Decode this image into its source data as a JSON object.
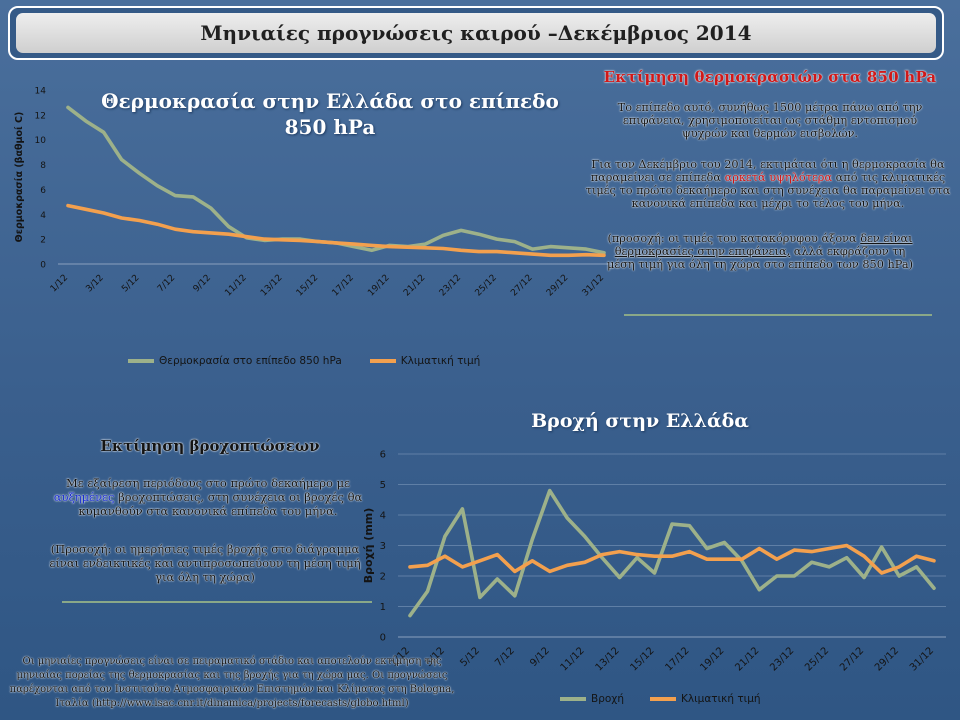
{
  "slide_title": "Μηνιαίες προγνώσεις καιρού –Δεκέμβριος 2014",
  "colors": {
    "series_green": "#9db18a",
    "series_orange": "#f3a04e",
    "accent_red": "#d01818",
    "accent_blue": "#1a2ed0"
  },
  "temp_section": {
    "heading": "Εκτίμηση θερμοκρασιών στα 850 hPa",
    "para1": "Το επίπεδο αυτό, συνήθως 1500 μέτρα πάνω από την επιφάνεια, χρησιμοποιείται ως στάθμη εντοπισμού ψυχρών και θερμών εισβολών.",
    "para2_a": "Για τον Δεκέμβριο του 2014, εκτιμάται ότι η θερμοκρασία θα παραμείνει σε επίπεδα",
    "para2_hl": "αρκετά υψηλότερα",
    "para2_b": "από τις κλιματικές τιμές το πρώτο δεκαήμερο και στη συνέχεια θα παραμείνει στα κανονικά επίπεδα και μέχρι το τέλος του μήνα.",
    "note_a": "(προσοχή: οι τιμές του κατακόρυφου άξονα",
    "note_ul": "δεν είναι θερμοκρασίες στην επιφάνεια,",
    "note_b": "αλλά εκφράζουν τη μέση τιμή για όλη τη χώρα στο επίπεδο των 850 hPa)"
  },
  "rain_section": {
    "heading": "Εκτίμηση βροχοπτώσεων",
    "para_a": "Με εξαίρεση περιόδους στο πρώτο δεκαήμερο με",
    "para_hl": "αυξημένες",
    "para_b": "βροχοπτώσεις, στη συνέχεια οι βροχές θα κυμανθούν στα κανονικά επίπεδα του μήνα.",
    "note": "(Προσοχή: οι ημερήσιες τιμές βροχής στο διάγραμμα είναι ενδεικτικές και αντιπροσωπεύουν τη μέση τιμή για όλη τη χώρα)"
  },
  "footer": "Οι μηνιαίες προγνώσεις είναι σε πειραματικό στάδιο και αποτελούν εκτίμηση της μηνιαίας πορείας της θερμοκρασίας και της βροχής για τη χώρα μας. Οι προγνώσεις παρέχονται από τον Ινστιτούτο Ατμοσφαιρικών Επιστημών και Κλίματος στη Bologna, Ιταλία (http://www.isac.cnr.it/dinamica/projects/forecasts/globo.html)",
  "chart_data": [
    {
      "type": "line",
      "title": "Θερμοκρασία στην Ελλάδα στο επίπεδο 850 hPa",
      "xlabel": "",
      "ylabel": "Θερμοκρασία (βαθμοί C)",
      "ylim": [
        0,
        14
      ],
      "yticks": [
        0,
        2,
        4,
        6,
        8,
        10,
        12,
        14
      ],
      "x": [
        "1/12",
        "2/12",
        "3/12",
        "4/12",
        "5/12",
        "6/12",
        "7/12",
        "8/12",
        "9/12",
        "10/12",
        "11/12",
        "12/12",
        "13/12",
        "14/12",
        "15/12",
        "16/12",
        "17/12",
        "18/12",
        "19/12",
        "20/12",
        "21/12",
        "22/12",
        "23/12",
        "24/12",
        "25/12",
        "26/12",
        "27/12",
        "28/12",
        "29/12",
        "30/12",
        "31/12"
      ],
      "xtick_labels": [
        "1/12",
        "3/12",
        "5/12",
        "7/12",
        "9/12",
        "11/12",
        "13/12",
        "15/12",
        "17/12",
        "19/12",
        "21/12",
        "23/12",
        "25/12",
        "27/12",
        "29/12",
        "31/12"
      ],
      "grid": false,
      "legend": "bottom",
      "series": [
        {
          "name": "Θερμοκρασία στο επίπεδο 850 hPa",
          "color": "#9db18a",
          "values": [
            12.6,
            11.5,
            10.6,
            8.4,
            7.3,
            6.3,
            5.5,
            5.4,
            4.5,
            3.0,
            2.1,
            1.9,
            2.0,
            2.0,
            1.8,
            1.7,
            1.4,
            1.1,
            1.5,
            1.4,
            1.6,
            2.3,
            2.7,
            2.4,
            2.0,
            1.8,
            1.2,
            1.4,
            1.3,
            1.2,
            0.9
          ]
        },
        {
          "name": "Κλιματική τιμή",
          "color": "#f3a04e",
          "values": [
            4.7,
            4.4,
            4.1,
            3.7,
            3.5,
            3.2,
            2.8,
            2.6,
            2.5,
            2.4,
            2.2,
            2.0,
            1.95,
            1.9,
            1.8,
            1.7,
            1.6,
            1.5,
            1.4,
            1.35,
            1.3,
            1.25,
            1.1,
            1.0,
            1.0,
            0.9,
            0.8,
            0.7,
            0.7,
            0.75,
            0.7
          ]
        }
      ]
    },
    {
      "type": "line",
      "title": "Βροχή στην Ελλάδα",
      "xlabel": "",
      "ylabel": "Βροχή (mm)",
      "ylim": [
        0,
        6
      ],
      "yticks": [
        0,
        1,
        2,
        3,
        4,
        5,
        6
      ],
      "x": [
        "1/12",
        "2/12",
        "3/12",
        "4/12",
        "5/12",
        "6/12",
        "7/12",
        "8/12",
        "9/12",
        "10/12",
        "11/12",
        "12/12",
        "13/12",
        "14/12",
        "15/12",
        "16/12",
        "17/12",
        "18/12",
        "19/12",
        "20/12",
        "21/12",
        "22/12",
        "23/12",
        "24/12",
        "25/12",
        "26/12",
        "27/12",
        "28/12",
        "29/12",
        "30/12",
        "31/12"
      ],
      "xtick_labels": [
        "1/12",
        "3/12",
        "5/12",
        "7/12",
        "9/12",
        "11/12",
        "13/12",
        "15/12",
        "17/12",
        "19/12",
        "21/12",
        "23/12",
        "25/12",
        "27/12",
        "29/12",
        "31/12"
      ],
      "grid": true,
      "legend": "bottom",
      "series": [
        {
          "name": "Βροχή",
          "color": "#9db18a",
          "values": [
            0.7,
            1.5,
            3.3,
            4.2,
            1.3,
            1.9,
            1.35,
            3.2,
            4.8,
            3.9,
            3.3,
            2.6,
            1.95,
            2.6,
            2.1,
            3.7,
            3.65,
            2.9,
            3.1,
            2.5,
            1.55,
            2.0,
            2.0,
            2.45,
            2.3,
            2.6,
            1.95,
            2.95,
            2.0,
            2.3,
            1.6
          ]
        },
        {
          "name": "Κλιματική τιμή",
          "color": "#f3a04e",
          "values": [
            2.3,
            2.35,
            2.65,
            2.3,
            2.5,
            2.7,
            2.15,
            2.5,
            2.15,
            2.35,
            2.45,
            2.7,
            2.8,
            2.7,
            2.65,
            2.65,
            2.8,
            2.55,
            2.55,
            2.55,
            2.9,
            2.55,
            2.85,
            2.8,
            2.9,
            3.0,
            2.65,
            2.1,
            2.3,
            2.65,
            2.5
          ]
        }
      ]
    }
  ]
}
